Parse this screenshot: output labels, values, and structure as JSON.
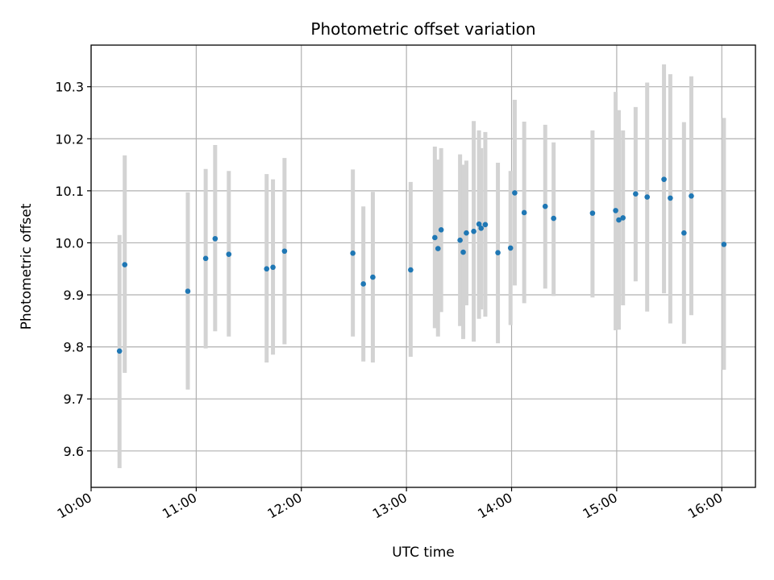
{
  "chart_data": {
    "type": "scatter",
    "title": "Photometric offset variation",
    "xlabel": "UTC time",
    "ylabel": "Photometric offset",
    "x_unit": "hours (UTC)",
    "xlim": [
      10.0,
      16.32
    ],
    "ylim": [
      9.53,
      10.38
    ],
    "xticks": [
      {
        "value": 10,
        "label": "10:00"
      },
      {
        "value": 11,
        "label": "11:00"
      },
      {
        "value": 12,
        "label": "12:00"
      },
      {
        "value": 13,
        "label": "13:00"
      },
      {
        "value": 14,
        "label": "14:00"
      },
      {
        "value": 15,
        "label": "15:00"
      },
      {
        "value": 16,
        "label": "16:00"
      }
    ],
    "yticks": [
      {
        "value": 9.6,
        "label": "9.6"
      },
      {
        "value": 9.7,
        "label": "9.7"
      },
      {
        "value": 9.8,
        "label": "9.8"
      },
      {
        "value": 9.9,
        "label": "9.9"
      },
      {
        "value": 10.0,
        "label": "10.0"
      },
      {
        "value": 10.1,
        "label": "10.1"
      },
      {
        "value": 10.2,
        "label": "10.2"
      },
      {
        "value": 10.3,
        "label": "10.3"
      }
    ],
    "grid": true,
    "point_color": "#1f77b4",
    "errorbar_color": "#d3d3d3",
    "points": [
      {
        "x": 10.27,
        "y": 9.792,
        "lo": 9.567,
        "hi": 10.015
      },
      {
        "x": 10.32,
        "y": 9.958,
        "lo": 9.75,
        "hi": 10.168
      },
      {
        "x": 10.92,
        "y": 9.907,
        "lo": 9.718,
        "hi": 10.097
      },
      {
        "x": 11.09,
        "y": 9.97,
        "lo": 9.797,
        "hi": 10.142
      },
      {
        "x": 11.18,
        "y": 10.008,
        "lo": 9.83,
        "hi": 10.188
      },
      {
        "x": 11.31,
        "y": 9.978,
        "lo": 9.82,
        "hi": 10.138
      },
      {
        "x": 11.67,
        "y": 9.95,
        "lo": 9.77,
        "hi": 10.132
      },
      {
        "x": 11.73,
        "y": 9.953,
        "lo": 9.785,
        "hi": 10.122
      },
      {
        "x": 11.84,
        "y": 9.984,
        "lo": 9.805,
        "hi": 10.163
      },
      {
        "x": 12.49,
        "y": 9.98,
        "lo": 9.82,
        "hi": 10.141
      },
      {
        "x": 12.59,
        "y": 9.921,
        "lo": 9.772,
        "hi": 10.07
      },
      {
        "x": 12.68,
        "y": 9.934,
        "lo": 9.77,
        "hi": 10.098
      },
      {
        "x": 13.04,
        "y": 9.948,
        "lo": 9.781,
        "hi": 10.117
      },
      {
        "x": 13.27,
        "y": 10.01,
        "lo": 9.836,
        "hi": 10.185
      },
      {
        "x": 13.3,
        "y": 9.989,
        "lo": 9.82,
        "hi": 10.16
      },
      {
        "x": 13.33,
        "y": 10.025,
        "lo": 9.867,
        "hi": 10.182
      },
      {
        "x": 13.51,
        "y": 10.005,
        "lo": 9.84,
        "hi": 10.17
      },
      {
        "x": 13.54,
        "y": 9.982,
        "lo": 9.815,
        "hi": 10.15
      },
      {
        "x": 13.57,
        "y": 10.019,
        "lo": 9.88,
        "hi": 10.158
      },
      {
        "x": 13.64,
        "y": 10.022,
        "lo": 9.81,
        "hi": 10.234
      },
      {
        "x": 13.69,
        "y": 10.036,
        "lo": 9.854,
        "hi": 10.216
      },
      {
        "x": 13.71,
        "y": 10.028,
        "lo": 9.872,
        "hi": 10.182
      },
      {
        "x": 13.75,
        "y": 10.035,
        "lo": 9.858,
        "hi": 10.213
      },
      {
        "x": 13.87,
        "y": 9.981,
        "lo": 9.807,
        "hi": 10.154
      },
      {
        "x": 13.99,
        "y": 9.99,
        "lo": 9.842,
        "hi": 10.138
      },
      {
        "x": 14.03,
        "y": 10.096,
        "lo": 9.918,
        "hi": 10.275
      },
      {
        "x": 14.12,
        "y": 10.058,
        "lo": 9.884,
        "hi": 10.233
      },
      {
        "x": 14.32,
        "y": 10.07,
        "lo": 9.912,
        "hi": 10.227
      },
      {
        "x": 14.4,
        "y": 10.047,
        "lo": 9.898,
        "hi": 10.193
      },
      {
        "x": 14.77,
        "y": 10.057,
        "lo": 9.895,
        "hi": 10.216
      },
      {
        "x": 14.99,
        "y": 10.062,
        "lo": 9.832,
        "hi": 10.29
      },
      {
        "x": 15.02,
        "y": 10.044,
        "lo": 9.833,
        "hi": 10.255
      },
      {
        "x": 15.06,
        "y": 10.048,
        "lo": 9.88,
        "hi": 10.216
      },
      {
        "x": 15.18,
        "y": 10.094,
        "lo": 9.926,
        "hi": 10.261
      },
      {
        "x": 15.29,
        "y": 10.088,
        "lo": 9.868,
        "hi": 10.308
      },
      {
        "x": 15.45,
        "y": 10.122,
        "lo": 9.903,
        "hi": 10.343
      },
      {
        "x": 15.51,
        "y": 10.086,
        "lo": 9.845,
        "hi": 10.324
      },
      {
        "x": 15.64,
        "y": 10.019,
        "lo": 9.806,
        "hi": 10.232
      },
      {
        "x": 15.71,
        "y": 10.09,
        "lo": 9.861,
        "hi": 10.32
      },
      {
        "x": 16.02,
        "y": 9.997,
        "lo": 9.756,
        "hi": 10.24
      }
    ]
  }
}
